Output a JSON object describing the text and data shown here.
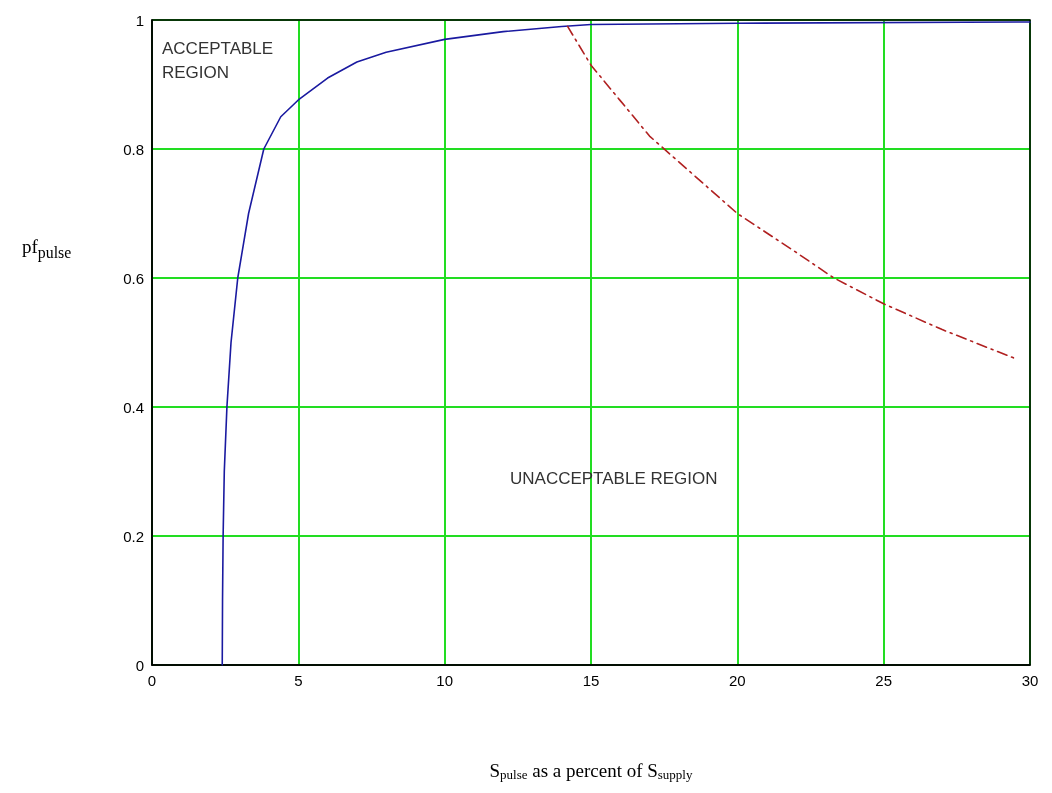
{
  "chart_data": {
    "type": "line",
    "xlabel": "S$_{pulse}$ as a percent of S$_{supply}$",
    "ylabel": "pf$_{pulse}$",
    "xlim": [
      0,
      30
    ],
    "xticks": [
      0,
      5,
      10,
      15,
      20,
      25,
      30
    ],
    "ylim": [
      0,
      1
    ],
    "yticks": [
      0,
      0.2,
      0.4,
      0.6,
      0.8,
      1
    ],
    "grid": true,
    "marker": "none",
    "annotations": [
      "ACCEPTABLE REGION",
      "UNACCEPTABLE REGION"
    ],
    "series": [
      {
        "color": "#1a1aa0",
        "line_style": "solid",
        "x": [
          2.4,
          2.41,
          2.43,
          2.47,
          2.56,
          2.7,
          2.93,
          3.3,
          3.82,
          4.4,
          5,
          6,
          7,
          8,
          10,
          12,
          14,
          15,
          20,
          30
        ],
        "values": [
          0,
          0.1,
          0.2,
          0.3,
          0.4,
          0.5,
          0.6,
          0.7,
          0.8,
          0.85,
          0.876,
          0.91,
          0.935,
          0.95,
          0.97,
          0.982,
          0.99,
          0.993,
          0.995,
          0.997
        ]
      },
      {
        "color": "#b02020",
        "line_style": "dashed",
        "x": [
          14.2,
          15,
          16,
          17,
          18,
          20,
          22,
          23.3,
          25,
          27,
          29.5
        ],
        "values": [
          0.99,
          0.93,
          0.875,
          0.82,
          0.78,
          0.7,
          0.64,
          0.6,
          0.56,
          0.52,
          0.475
        ]
      }
    ]
  }
}
